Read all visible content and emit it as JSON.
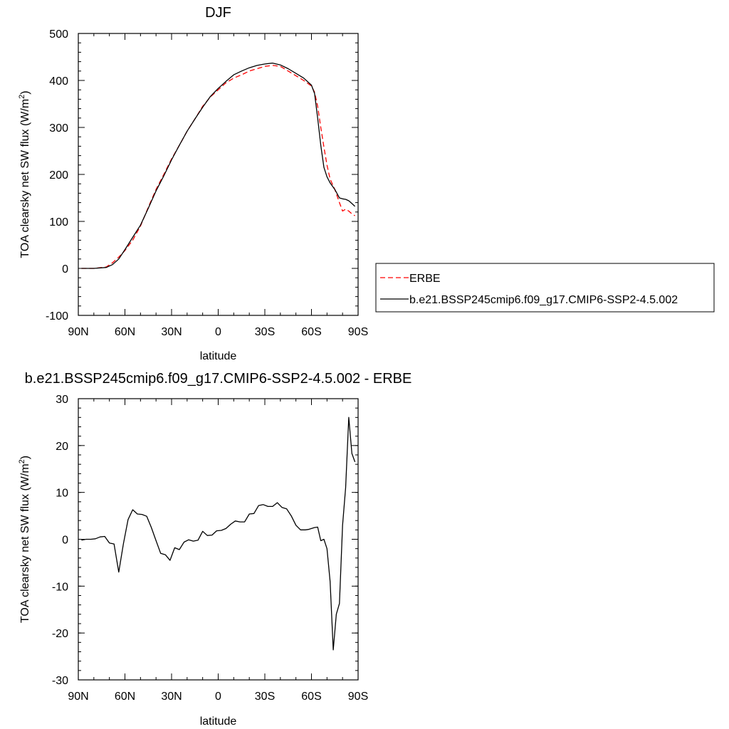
{
  "chart_data": [
    {
      "type": "line",
      "title": "DJF",
      "xlabel": "latitude",
      "ylabel": "TOA clearsky net SW flux (W/m",
      "ylabel_sup": "2",
      "ylabel_close": ")",
      "xlim": [
        -90,
        90
      ],
      "ylim": [
        -100,
        500
      ],
      "xticks": [
        -90,
        -60,
        -30,
        0,
        30,
        60,
        90
      ],
      "xtick_labels": [
        "90N",
        "60N",
        "30N",
        "0",
        "30S",
        "60S",
        "90S"
      ],
      "yticks": [
        -100,
        0,
        100,
        200,
        300,
        400,
        500
      ],
      "ytick_labels": [
        "-100",
        "0",
        "100",
        "200",
        "300",
        "400",
        "500"
      ],
      "legend_position": "right",
      "series": [
        {
          "name": "ERBE",
          "color": "#ff0000",
          "dash": "dashed",
          "x": [
            -88,
            -80,
            -72,
            -68,
            -64,
            -60,
            -55,
            -50,
            -45,
            -40,
            -35,
            -30,
            -25,
            -20,
            -15,
            -10,
            -5,
            0,
            5,
            10,
            15,
            20,
            25,
            30,
            35,
            40,
            45,
            50,
            55,
            60,
            62,
            64,
            66,
            68,
            70,
            72,
            75,
            78,
            80,
            82,
            84,
            86,
            88
          ],
          "y": [
            0,
            0,
            3,
            12,
            24,
            38,
            60,
            90,
            130,
            168,
            200,
            233,
            262,
            292,
            318,
            345,
            365,
            380,
            395,
            405,
            412,
            420,
            425,
            430,
            432,
            430,
            420,
            410,
            400,
            388,
            375,
            345,
            300,
            258,
            220,
            190,
            168,
            140,
            122,
            126,
            122,
            116,
            112
          ]
        },
        {
          "name": "b.e21.BSSP245cmip6.f09_g17.CMIP6-SSP2-4.5.002",
          "color": "#000000",
          "dash": "solid",
          "x": [
            -88,
            -80,
            -72,
            -68,
            -64,
            -60,
            -55,
            -50,
            -45,
            -40,
            -35,
            -30,
            -25,
            -20,
            -15,
            -10,
            -5,
            0,
            5,
            10,
            15,
            20,
            25,
            30,
            35,
            40,
            45,
            50,
            55,
            60,
            62,
            64,
            66,
            68,
            70,
            72,
            75,
            78,
            80,
            82,
            84,
            86,
            88
          ],
          "y": [
            0,
            0,
            2,
            8,
            20,
            40,
            66,
            92,
            128,
            165,
            197,
            231,
            262,
            292,
            318,
            343,
            366,
            383,
            398,
            412,
            420,
            427,
            432,
            435,
            437,
            433,
            425,
            415,
            405,
            390,
            372,
            320,
            262,
            215,
            195,
            182,
            168,
            150,
            148,
            147,
            144,
            138,
            132
          ]
        }
      ]
    },
    {
      "type": "line",
      "title": "b.e21.BSSP245cmip6.f09_g17.CMIP6-SSP2-4.5.002 - ERBE",
      "xlabel": "latitude",
      "ylabel": "TOA clearsky net SW flux (W/m",
      "ylabel_sup": "2",
      "ylabel_close": ")",
      "xlim": [
        -90,
        90
      ],
      "ylim": [
        -30,
        30
      ],
      "xticks": [
        -90,
        -60,
        -30,
        0,
        30,
        60,
        90
      ],
      "xtick_labels": [
        "90N",
        "60N",
        "30N",
        "0",
        "30S",
        "60S",
        "90S"
      ],
      "yticks": [
        -30,
        -20,
        -10,
        0,
        10,
        20,
        30
      ],
      "ytick_labels": [
        "-30",
        "-20",
        "-10",
        "0",
        "10",
        "20",
        "30"
      ],
      "series": [
        {
          "color": "#000000",
          "dash": "solid",
          "x": [
            -88,
            -85,
            -82,
            -79,
            -76,
            -73,
            -70,
            -67,
            -64,
            -61,
            -58,
            -55,
            -52,
            -49,
            -46,
            -43,
            -40,
            -37,
            -34,
            -31,
            -28,
            -25,
            -22,
            -19,
            -16,
            -13,
            -10,
            -7,
            -4,
            -1,
            2,
            5,
            8,
            11,
            14,
            17,
            20,
            23,
            26,
            29,
            32,
            35,
            38,
            41,
            44,
            47,
            50,
            53,
            56,
            58,
            60,
            62,
            64,
            66,
            68,
            70,
            72,
            74,
            76,
            78,
            80,
            82,
            84,
            86,
            88
          ],
          "y": [
            -0.2,
            0,
            0,
            0.1,
            0.5,
            0.6,
            -0.8,
            -1,
            -7,
            -1,
            4.2,
            6.3,
            5.4,
            5.3,
            4.9,
            2.5,
            -0.3,
            -3,
            -3.3,
            -4.5,
            -1.8,
            -2.2,
            -0.6,
            -0.1,
            -0.4,
            -0.2,
            1.7,
            0.8,
            0.9,
            1.8,
            1.9,
            2.3,
            3.2,
            3.9,
            3.7,
            3.7,
            5.4,
            5.5,
            7.2,
            7.4,
            7.0,
            7.0,
            7.8,
            6.8,
            6.5,
            5.0,
            3.0,
            2.0,
            2.0,
            2.1,
            2.3,
            2.5,
            2.6,
            -0.3,
            0,
            -2,
            -9,
            -23.6,
            -16,
            -13.7,
            3,
            11,
            26,
            18.3,
            16.5
          ]
        }
      ]
    }
  ]
}
